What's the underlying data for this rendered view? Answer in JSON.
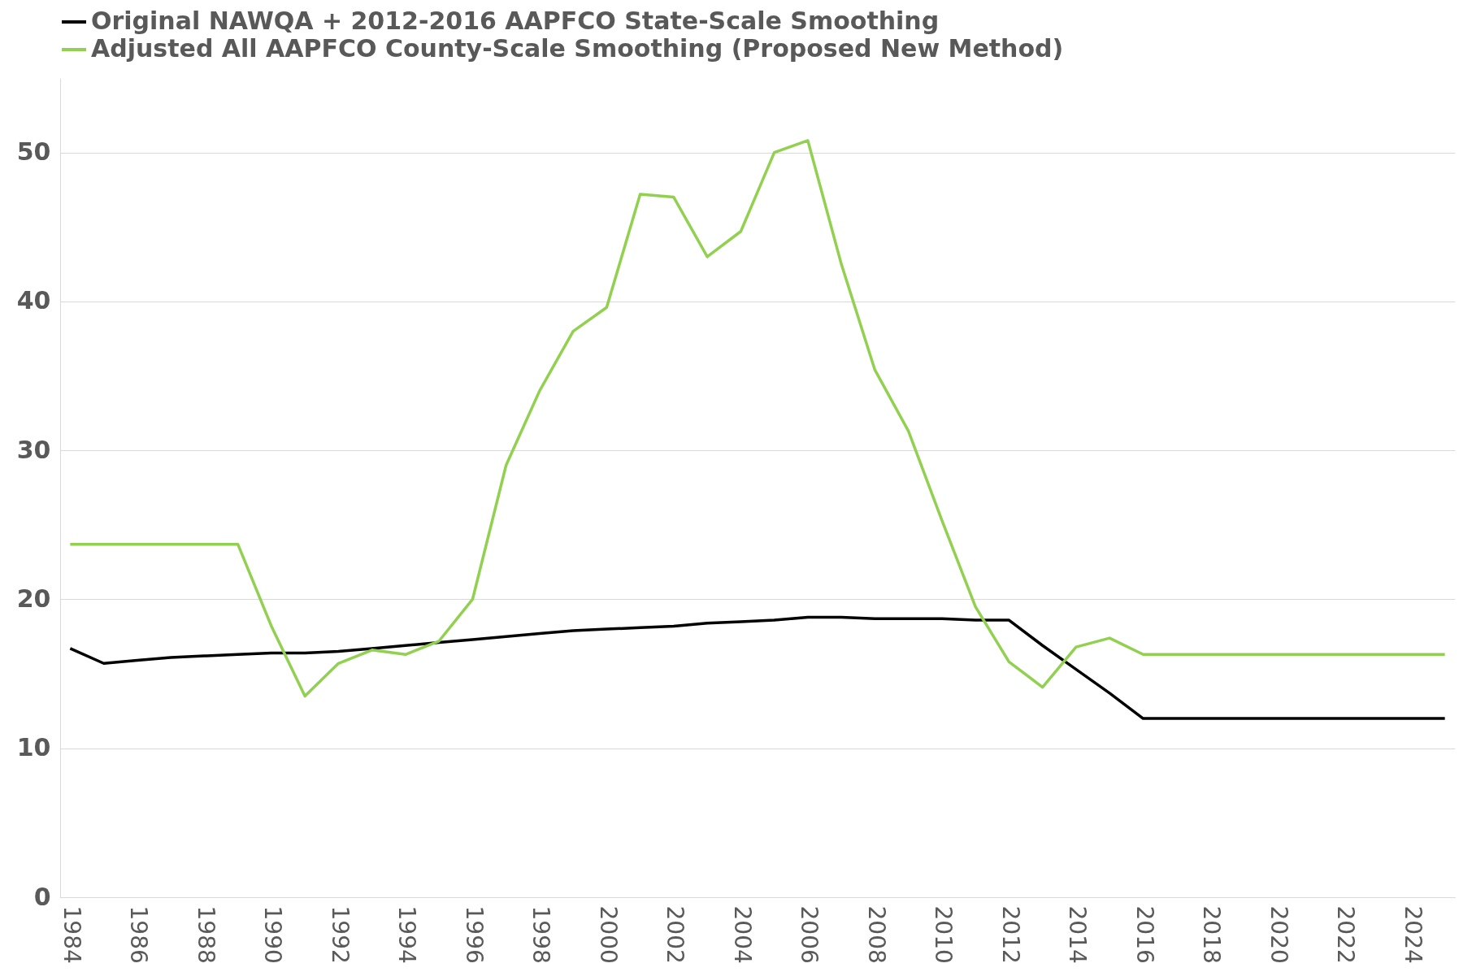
{
  "chart_data": {
    "type": "line",
    "categories": [
      "1984",
      null,
      "1986",
      null,
      "1988",
      null,
      "1990",
      null,
      "1992",
      null,
      "1994",
      null,
      "1996",
      null,
      "1998",
      null,
      "2000",
      null,
      "2002",
      null,
      "2004",
      null,
      "2006",
      null,
      "2008",
      null,
      "2010",
      null,
      "2012",
      null,
      "2014",
      null,
      "2016",
      null,
      "2018",
      null,
      "2020",
      null,
      "2022",
      null,
      "2024",
      null
    ],
    "series": [
      {
        "name": "Original NAWQA + 2012-2016 AAPFCO State-Scale Smoothing",
        "color": "#000000",
        "values": [
          16.7,
          15.7,
          15.9,
          16.1,
          16.2,
          16.3,
          16.4,
          16.4,
          16.5,
          16.7,
          16.9,
          17.1,
          17.3,
          17.5,
          17.7,
          17.9,
          18.0,
          18.1,
          18.2,
          18.4,
          18.5,
          18.6,
          18.8,
          18.8,
          18.7,
          18.7,
          18.7,
          18.6,
          18.6,
          16.9,
          15.3,
          13.7,
          12.0,
          12.0,
          12.0,
          12.0,
          12.0,
          12.0,
          12.0,
          12.0,
          12.0,
          12.0
        ]
      },
      {
        "name": "Adjusted All AAPFCO County-Scale Smoothing (Proposed New Method)",
        "color": "#92d050",
        "values": [
          23.7,
          23.7,
          23.7,
          23.7,
          23.7,
          23.7,
          18.2,
          13.5,
          15.7,
          16.6,
          16.3,
          17.2,
          20.0,
          29.0,
          34.0,
          38.0,
          39.6,
          47.2,
          47.0,
          43.0,
          44.7,
          50.0,
          50.8,
          42.5,
          35.4,
          31.3,
          25.3,
          19.5,
          15.8,
          14.1,
          16.8,
          17.4,
          16.3,
          16.3,
          16.3,
          16.3,
          16.3,
          16.3,
          16.3,
          16.3,
          16.3,
          16.3
        ]
      }
    ],
    "ylim": [
      0,
      55
    ],
    "yticks": [
      0,
      10,
      20,
      30,
      40,
      50
    ],
    "grid": "y",
    "legend": "top",
    "line_style": "solid",
    "marker": "none"
  }
}
